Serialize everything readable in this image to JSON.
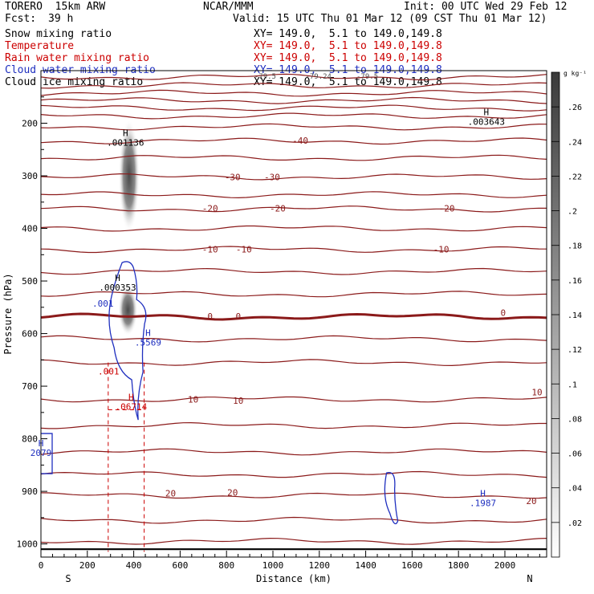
{
  "header": {
    "model": "TORERO  15km ARW",
    "org": "NCAR/MMM",
    "init": "Init: 00 UTC Wed 29 Feb 12",
    "fcst_label": "Fcst:",
    "fcst_value": "39 h",
    "valid": "Valid: 15 UTC Thu 01 Mar 12 (09 CST Thu 01 Mar 12)"
  },
  "fields": [
    {
      "name": "Snow mixing ratio",
      "xy": "XY= 149.0,  5.1 to 149.0,149.8",
      "color": "#000000"
    },
    {
      "name": "Temperature",
      "xy": "XY= 149.0,  5.1 to 149.0,149.8",
      "color": "#cc0000"
    },
    {
      "name": "Rain water mixing ratio",
      "xy": "XY= 149.0,  5.1 to 149.0,149.8",
      "color": "#cc0000"
    },
    {
      "name": "Cloud water mixing ratio",
      "xy": "XY= 149.0,  5.1 to 149.0,149.8",
      "color": "#1f2fbf"
    },
    {
      "name": "Cloud ice mixing ratio",
      "xy": "XY= 149.0,  5.1 to 149.0,149.8",
      "color": "#000000"
    }
  ],
  "chart_data": {
    "type": "cross-section contour",
    "xlabel": "Distance (km)",
    "ylabel": "Pressure (hPa)",
    "x_ticks": [
      0,
      200,
      400,
      600,
      800,
      1000,
      1200,
      1400,
      1600,
      1800,
      2000
    ],
    "xlim": [
      0,
      2180
    ],
    "y_ticks": [
      200,
      300,
      400,
      500,
      600,
      700,
      800,
      900,
      1000
    ],
    "ylim": [
      100,
      1025
    ],
    "x_end_labels": {
      "left": "S",
      "right": "N"
    },
    "temperature_contours": [
      {
        "p": 112,
        "label": ""
      },
      {
        "p": 128,
        "label": ""
      },
      {
        "p": 143,
        "label": ""
      },
      {
        "p": 157,
        "label": ""
      },
      {
        "p": 171,
        "label": ""
      },
      {
        "p": 186,
        "label": ""
      },
      {
        "p": 207,
        "label": ""
      },
      {
        "p": 234,
        "label": "-40"
      },
      {
        "p": 266,
        "label": ""
      },
      {
        "p": 302,
        "label": "-30"
      },
      {
        "p": 336,
        "label": ""
      },
      {
        "p": 363,
        "label": "-20"
      },
      {
        "p": 400,
        "label": ""
      },
      {
        "p": 440,
        "label": "-10"
      },
      {
        "p": 482,
        "label": ""
      },
      {
        "p": 525,
        "label": ""
      },
      {
        "p": 568,
        "label": "0",
        "bold": true
      },
      {
        "p": 610,
        "label": ""
      },
      {
        "p": 655,
        "label": ""
      },
      {
        "p": 725,
        "label": "10"
      },
      {
        "p": 775,
        "label": ""
      },
      {
        "p": 825,
        "label": ""
      },
      {
        "p": 868,
        "label": ""
      },
      {
        "p": 908,
        "label": "20"
      },
      {
        "p": 955,
        "label": ""
      },
      {
        "p": 995,
        "label": ""
      }
    ],
    "contour_labels": [
      {
        "x": 230,
        "p": 233,
        "text": "-40",
        "color": "#8b1a1a"
      },
      {
        "x": 170,
        "p": 302,
        "text": "-30",
        "color": "#8b1a1a"
      },
      {
        "x": 205,
        "p": 302,
        "text": "-30",
        "color": "#8b1a1a"
      },
      {
        "x": 150,
        "p": 362,
        "text": "-20",
        "color": "#8b1a1a"
      },
      {
        "x": 210,
        "p": 362,
        "text": "-20",
        "color": "#8b1a1a"
      },
      {
        "x": 360,
        "p": 362,
        "text": "-20",
        "color": "#8b1a1a"
      },
      {
        "x": 150,
        "p": 440,
        "text": "-10",
        "color": "#8b1a1a"
      },
      {
        "x": 180,
        "p": 440,
        "text": "-10",
        "color": "#8b1a1a"
      },
      {
        "x": 355,
        "p": 440,
        "text": "-10",
        "color": "#8b1a1a"
      },
      {
        "x": 150,
        "p": 567,
        "text": "0",
        "color": "#8b1a1a"
      },
      {
        "x": 175,
        "p": 567,
        "text": "0",
        "color": "#8b1a1a"
      },
      {
        "x": 410,
        "p": 560,
        "text": "0",
        "color": "#8b1a1a"
      },
      {
        "x": 135,
        "p": 725,
        "text": "10",
        "color": "#8b1a1a"
      },
      {
        "x": 175,
        "p": 727,
        "text": "10",
        "color": "#8b1a1a"
      },
      {
        "x": 440,
        "p": 711,
        "text": "10",
        "color": "#8b1a1a"
      },
      {
        "x": 115,
        "p": 904,
        "text": "20",
        "color": "#8b1a1a"
      },
      {
        "x": 170,
        "p": 902,
        "text": "20",
        "color": "#8b1a1a"
      },
      {
        "x": 435,
        "p": 918,
        "text": "20",
        "color": "#8b1a1a"
      }
    ],
    "extrema": [
      {
        "x": 75,
        "p": 240,
        "text": "H",
        "value": ".001136",
        "color": "#000000"
      },
      {
        "x": 395,
        "p": 200,
        "text": "H",
        "value": ".003643",
        "color": "#000000"
      },
      {
        "x": 68,
        "p": 515,
        "text": "H",
        "value": ".000353",
        "color": "#000000"
      },
      {
        "x": 95,
        "p": 620,
        "text": "H",
        "value": ".5569",
        "color": "#1f2fbf"
      },
      {
        "x": 80,
        "p": 742,
        "text": "H",
        "value": ".06714",
        "color": "#cc0000"
      },
      {
        "x": 0,
        "p": 830,
        "text": "H",
        "value": "2079",
        "color": "#1f2fbf"
      },
      {
        "x": 392,
        "p": 925,
        "text": "H",
        "value": ".1987",
        "color": "#1f2fbf"
      },
      {
        "x": 55,
        "p": 546,
        "text": "",
        "value": ".001",
        "color": "#1f2fbf"
      },
      {
        "x": 60,
        "p": 675,
        "text": "",
        "value": ".001",
        "color": "#cc0000"
      }
    ],
    "colorbar": {
      "unit": "g kg⁻¹",
      "ticks": [
        ".02",
        ".04",
        ".06",
        ".08",
        ".1",
        ".12",
        ".14",
        ".16",
        ".18",
        ".2",
        ".22",
        ".24",
        ".26"
      ]
    },
    "overlay_labels": [
      "-79.5",
      "-79.24",
      "-79.5"
    ]
  }
}
